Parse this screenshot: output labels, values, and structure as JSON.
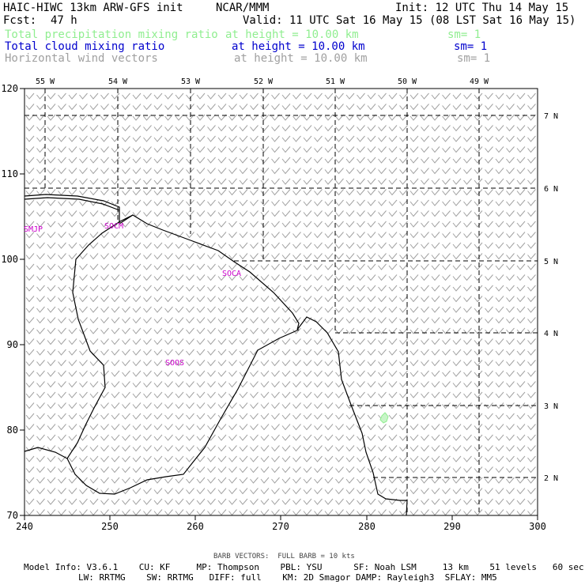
{
  "header": {
    "model": "HAIC-HIWC 13km ARW-GFS init",
    "org": "NCAR/MMM",
    "init": "Init: 12 UTC Thu 14 May 15",
    "fcst_label": "Fcst:",
    "fcst_value": "47 h",
    "valid": "Valid: 11 UTC Sat 16 May 15 (08 LST Sat 16 May 15)",
    "fields": [
      {
        "name": "Total precipitation mixing ratio",
        "height": "at height = 10.00 km",
        "sm": "sm= 1",
        "color": "#90ee90"
      },
      {
        "name": "Total cloud mixing ratio",
        "height": "at height = 10.00 km",
        "sm": "sm= 1",
        "color": "#0000cd"
      },
      {
        "name": "Horizontal wind vectors",
        "height": "at height = 10.00 km",
        "sm": "sm= 1",
        "color": "#a0a0a0"
      }
    ]
  },
  "map": {
    "x_ticks": [
      "240",
      "250",
      "260",
      "270",
      "280",
      "290",
      "300"
    ],
    "y_ticks": [
      "70",
      "80",
      "90",
      "100",
      "110",
      "120"
    ],
    "lon_labels": [
      "55 W",
      "54 W",
      "53 W",
      "52 W",
      "51 W",
      "50 W",
      "49 W"
    ],
    "lat_labels": [
      "7 N",
      "6 N",
      "5 N",
      "4 N",
      "3 N",
      "2 N"
    ],
    "stations": [
      "SMJP",
      "SOCM",
      "SOCA",
      "SOOS"
    ],
    "station_color": "#cc00cc",
    "coast_color": "#000000",
    "barb_color": "#a0a0a0",
    "wind_regime": "light northeasterly barbs, full barb = 10 kts"
  },
  "footer": {
    "barb_note": "BARB VECTORS:  FULL BARB = 10 kts",
    "line1": "Model Info: V3.6.1    CU: KF     MP: Thompson    PBL: YSU      SF: Noah LSM     13 km    51 levels   60 sec",
    "line2": "LW: RRTMG    SW: RRTMG   DIFF: full    KM: 2D Smagor DAMP: Rayleigh3  SFLAY: MM5"
  }
}
